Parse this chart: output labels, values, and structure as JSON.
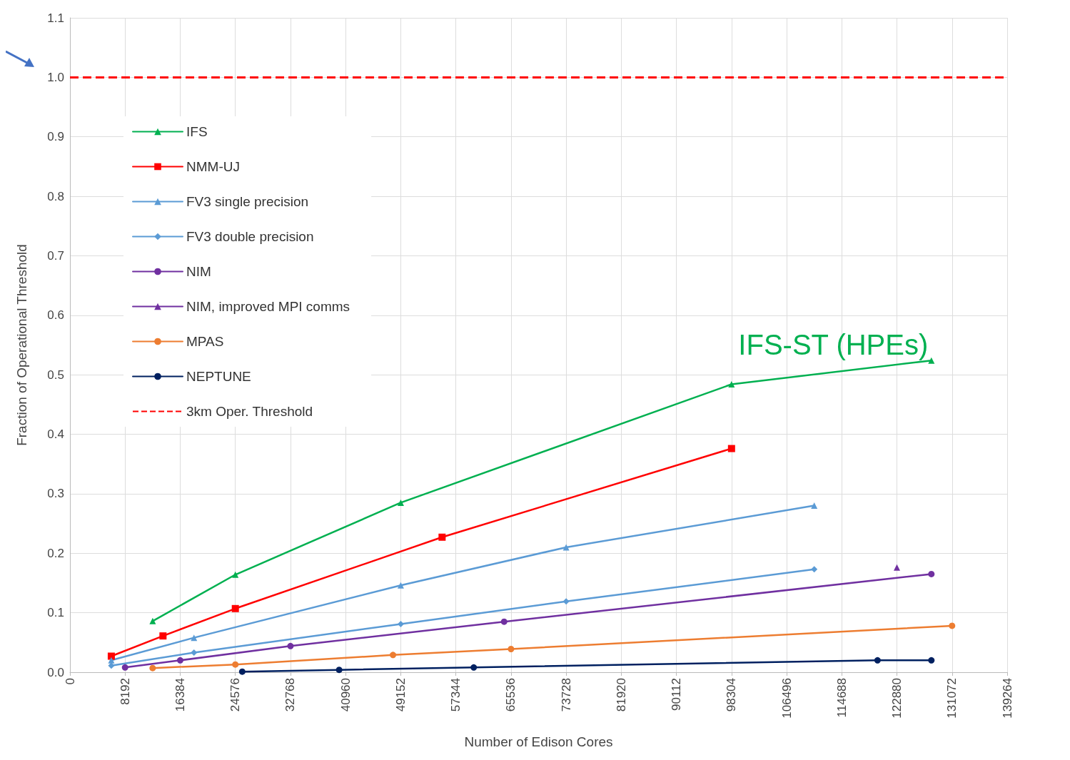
{
  "chart_data": {
    "type": "line",
    "xlabel": "Number of Edison Cores",
    "ylabel": "Fraction of Operational Threshold",
    "xlim": [
      0,
      139264
    ],
    "xticks": [
      0,
      8192,
      16384,
      24576,
      32768,
      40960,
      49152,
      57344,
      65536,
      73728,
      81920,
      90112,
      98304,
      106496,
      114688,
      122880,
      131072,
      139264
    ],
    "ylim": [
      0,
      1.1
    ],
    "yticks": [
      {
        "value": 0,
        "label": "0.0"
      },
      {
        "value": 0.1,
        "label": "0.1"
      },
      {
        "value": 0.2,
        "label": "0.2"
      },
      {
        "value": 0.3,
        "label": "0.3"
      },
      {
        "value": 0.4,
        "label": "0.4"
      },
      {
        "value": 0.5,
        "label": "0.5"
      },
      {
        "value": 0.6,
        "label": "0.6"
      },
      {
        "value": 0.7,
        "label": "0.7"
      },
      {
        "value": 0.8,
        "label": "0.8"
      },
      {
        "value": 0.9,
        "label": "0.9"
      },
      {
        "value": 1,
        "label": "1.0"
      },
      {
        "value": 1.1,
        "label": "1.1"
      }
    ],
    "grid": true,
    "legend": "top left",
    "line_style": "solid",
    "series": [
      {
        "name": "IFS",
        "color": "#00b050",
        "marker": "triangle",
        "x": [
          12288,
          24576,
          49152,
          98304,
          128000
        ],
        "values": [
          0.086,
          0.164,
          0.285,
          0.484,
          0.524
        ]
      },
      {
        "name": "NMM-UJ",
        "color": "#ff0000",
        "marker": "square",
        "x": [
          6144,
          13824,
          24576,
          55296,
          98304
        ],
        "values": [
          0.027,
          0.061,
          0.107,
          0.227,
          0.376
        ]
      },
      {
        "name": "FV3 single precision",
        "color": "#5b9bd5",
        "marker": "triangle",
        "x": [
          6144,
          18432,
          49152,
          73728,
          110592
        ],
        "values": [
          0.02,
          0.058,
          0.146,
          0.21,
          0.28
        ]
      },
      {
        "name": "FV3 double precision",
        "color": "#5b9bd5",
        "marker": "diamond",
        "x": [
          6144,
          18432,
          49152,
          73728,
          110592
        ],
        "values": [
          0.011,
          0.033,
          0.081,
          0.119,
          0.173
        ]
      },
      {
        "name": "NIM",
        "color": "#7030a0",
        "marker": "circle",
        "x": [
          8192,
          16384,
          32768,
          64512,
          128000
        ],
        "values": [
          0.008,
          0.02,
          0.044,
          0.085,
          0.165
        ]
      },
      {
        "name": "NIM, improved MPI comms",
        "color": "#7030a0",
        "marker": "triangle",
        "x": [
          122880
        ],
        "values": [
          0.176
        ]
      },
      {
        "name": "MPAS",
        "color": "#ed7d31",
        "marker": "circle",
        "x": [
          12288,
          24576,
          48000,
          65536,
          131072
        ],
        "values": [
          0.007,
          0.013,
          0.029,
          0.039,
          0.078
        ]
      },
      {
        "name": "NEPTUNE",
        "color": "#002060",
        "marker": "circle",
        "x": [
          25600,
          40000,
          60000,
          120000,
          128000
        ],
        "values": [
          0.001,
          0.004,
          0.008,
          0.02,
          0.02
        ]
      }
    ],
    "ref_lines": [
      {
        "axis": "y",
        "value": 1,
        "label": "3km Oper. Threshold",
        "color": "#ff0000",
        "line_style": "dashed"
      }
    ],
    "annotations": [
      "IFS-ST (HPEs)"
    ]
  }
}
